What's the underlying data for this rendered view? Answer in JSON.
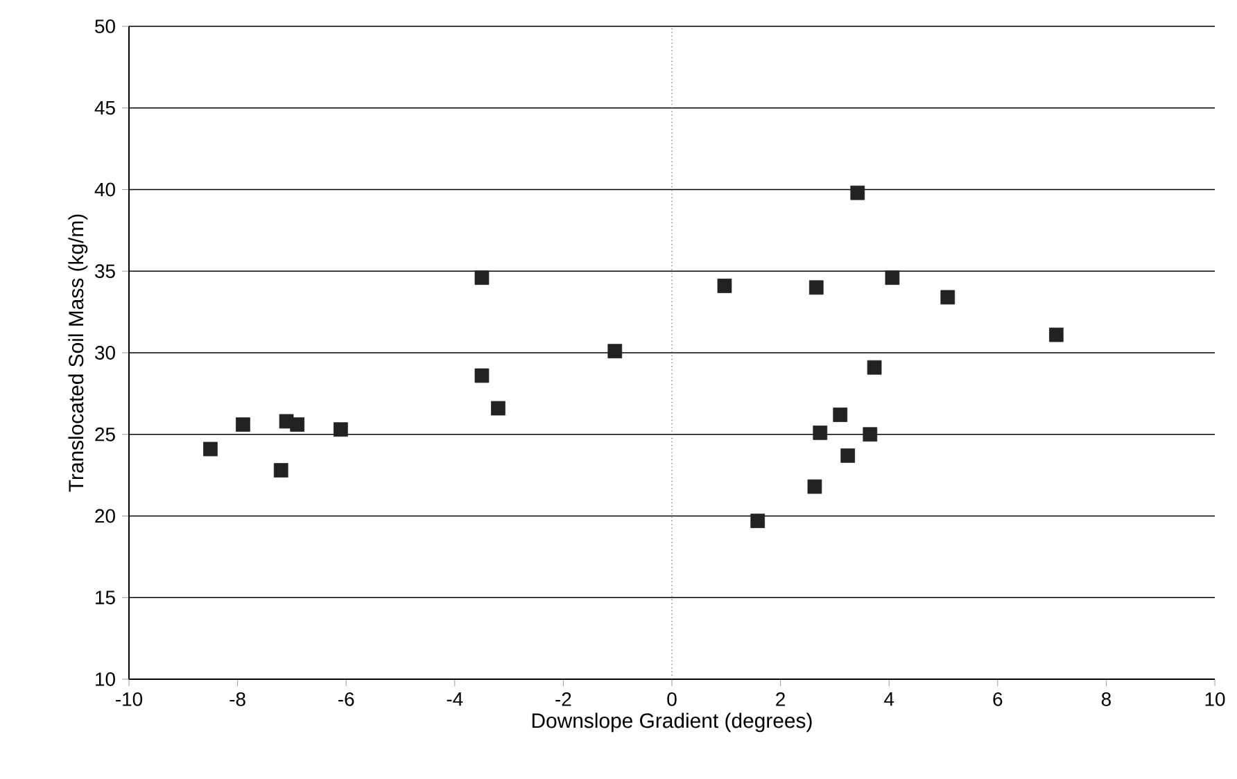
{
  "chart_data": {
    "type": "scatter",
    "xlabel": "Downslope Gradient (degrees)",
    "ylabel": "Translocated Soil Mass (kg/m)",
    "x": [
      -8.5,
      -7.9,
      -7.2,
      -7.1,
      -6.9,
      -6.1,
      -3.5,
      -3.5,
      -3.2,
      -1.05,
      0.97,
      1.58,
      2.63,
      2.66,
      2.73,
      3.1,
      3.24,
      3.42,
      3.65,
      3.73,
      4.06,
      5.08,
      7.08
    ],
    "values": [
      24.1,
      25.6,
      22.8,
      25.8,
      25.6,
      25.3,
      34.6,
      28.6,
      26.6,
      30.1,
      34.1,
      19.7,
      21.8,
      34.0,
      25.1,
      26.2,
      23.7,
      39.8,
      25.0,
      29.1,
      34.6,
      33.4,
      31.1
    ],
    "color": "#222222",
    "marker": "square",
    "xlim": [
      -10,
      10
    ],
    "xticks": [
      -10,
      -8,
      -6,
      -4,
      -2,
      0,
      2,
      4,
      6,
      8,
      10
    ],
    "ylim": [
      10,
      50
    ],
    "yticks": [
      10,
      15,
      20,
      25,
      30,
      35,
      40,
      45,
      50
    ],
    "grid": "y",
    "ref_lines": [
      {
        "axis": "x",
        "value": 0,
        "line_style": "dotted",
        "color": "#555555"
      }
    ]
  }
}
